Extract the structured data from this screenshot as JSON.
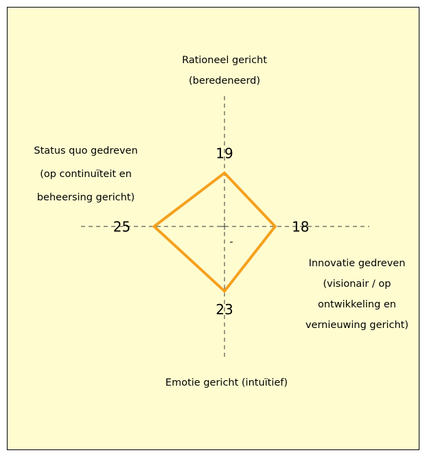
{
  "chart_data": {
    "type": "radar",
    "categories": [
      [
        "Rationeel gericht",
        "(beredeneerd)"
      ],
      [
        "Innovatie gedreven",
        "(visionair / op",
        "ontwikkeling en",
        "vernieuwing gericht)"
      ],
      [
        "Emotie gericht (intuïtief)"
      ],
      [
        "Status quo gedreven",
        "(op continuïteit en",
        "beheersing gericht)"
      ]
    ],
    "values": [
      19,
      18,
      23,
      25
    ],
    "color": "#f5a01e",
    "annotation": "-"
  }
}
